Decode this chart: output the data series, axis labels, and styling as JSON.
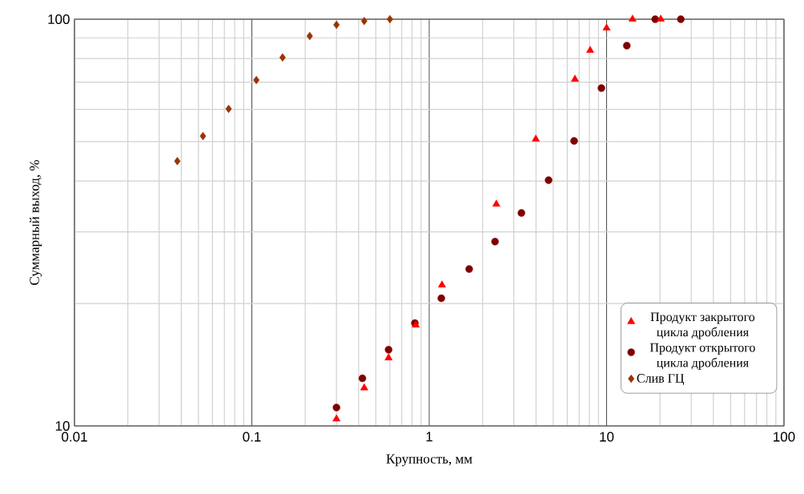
{
  "chart_data": {
    "type": "scatter",
    "xlabel": "Крупность, мм",
    "ylabel": "Суммарный выход, %",
    "log": "xy",
    "grid": true,
    "legend": "bottom right",
    "xlim": [
      0.01,
      100
    ],
    "ylim": [
      10,
      100
    ],
    "xticks": [
      0.01,
      0.1,
      1,
      10,
      100
    ],
    "yticks": [
      10,
      100
    ],
    "series": [
      {
        "name": "Продукт закрытого цикла дробления",
        "color": "#ff0000",
        "marker": "triangle",
        "x": [
          0.3,
          0.43,
          0.59,
          0.84,
          1.18,
          2.39,
          3.99,
          6.63,
          8.08,
          10.0,
          14.0,
          20.2
        ],
        "values": [
          10.4,
          12.4,
          14.7,
          17.7,
          22.2,
          35.1,
          50.7,
          71.2,
          83.8,
          95.1,
          100,
          100
        ]
      },
      {
        "name": "Продукт открытого цикла дробления",
        "color": "#7f0000",
        "marker": "circle",
        "x": [
          0.3,
          0.42,
          0.59,
          0.83,
          1.17,
          1.68,
          2.35,
          3.31,
          4.71,
          6.56,
          9.35,
          13.0,
          18.8,
          26.2
        ],
        "values": [
          11.1,
          13.1,
          15.4,
          17.9,
          20.6,
          24.3,
          28.4,
          33.4,
          40.2,
          50.2,
          67.7,
          86.1,
          100,
          100
        ]
      },
      {
        "name": "Слив ГЦ",
        "color": "#993300",
        "marker": "diamond",
        "x": [
          0.038,
          0.053,
          0.074,
          0.106,
          0.149,
          0.212,
          0.3,
          0.43,
          0.6
        ],
        "values": [
          44.8,
          51.6,
          60.2,
          70.9,
          80.5,
          90.9,
          96.9,
          99.0,
          100
        ]
      }
    ]
  }
}
